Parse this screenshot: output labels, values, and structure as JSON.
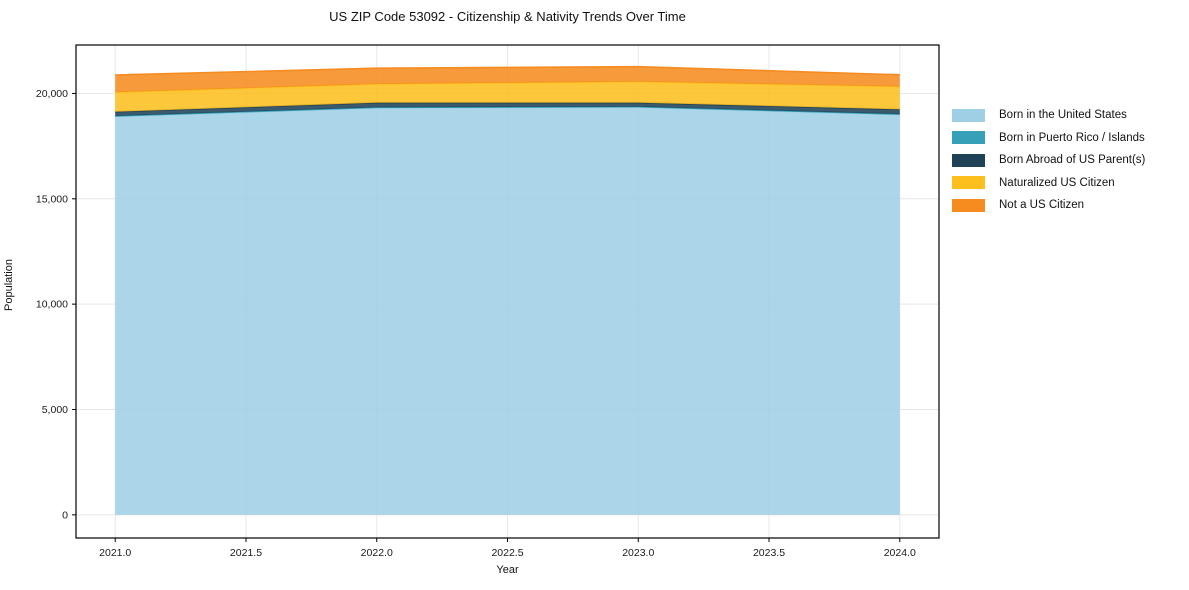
{
  "title": "US ZIP Code 53092 - Citizenship & Nativity Trends Over Time",
  "chart_data": {
    "type": "area",
    "stacked": true,
    "title": "US ZIP Code 53092 - Citizenship & Nativity Trends Over Time",
    "xlabel": "Year",
    "ylabel": "Population",
    "x": [
      2021,
      2022,
      2023,
      2024
    ],
    "series": [
      {
        "name": "Born in the United States",
        "color": "#9fcfe5",
        "values": [
          18900,
          19310,
          19340,
          18990
        ]
      },
      {
        "name": "Born in Puerto Rico / Islands",
        "color": "#35a0b8",
        "values": [
          30,
          30,
          30,
          30
        ]
      },
      {
        "name": "Born Abroad of US Parent(s)",
        "color": "#1f4257",
        "values": [
          200,
          220,
          190,
          225
        ]
      },
      {
        "name": "Naturalized US Citizen",
        "color": "#fcbf1d",
        "values": [
          925,
          890,
          1000,
          1080
        ]
      },
      {
        "name": "Not a US Citizen",
        "color": "#f68b1f",
        "values": [
          820,
          750,
          710,
          560
        ]
      }
    ],
    "totals": [
      20875,
      21200,
      21270,
      20885
    ],
    "xlim": [
      2020.85,
      2024.15
    ],
    "ylim": [
      -1100,
      22300
    ],
    "x_tick_values": [
      2021.0,
      2021.5,
      2022.0,
      2022.5,
      2023.0,
      2023.5,
      2024.0
    ],
    "x_tick_labels": [
      "2021.0",
      "2021.5",
      "2022.0",
      "2022.5",
      "2023.0",
      "2023.5",
      "2024.0"
    ],
    "y_tick_values": [
      0,
      5000,
      10000,
      15000,
      20000
    ],
    "y_tick_labels": [
      "0",
      "5,000",
      "10,000",
      "15,000",
      "20,000"
    ],
    "grid": true,
    "legend_position": "outside-right",
    "colors": {
      "frame": "#000000",
      "gridline": "#e7e7e7",
      "tick_text": "#1a1a1a",
      "background": "#ffffff"
    }
  }
}
